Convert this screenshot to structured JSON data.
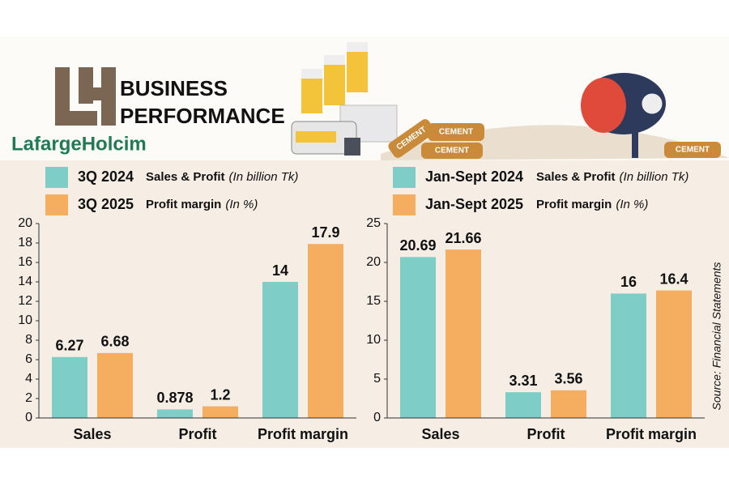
{
  "header": {
    "title_lines": [
      "BUSINESS",
      "PERFORMANCE"
    ],
    "brand": "LafargeHolcim",
    "bag_labels": [
      "CEMENT",
      "CEMENT",
      "CEMENT",
      "CEMENT"
    ]
  },
  "source": "Source: Financial Statements",
  "chart_data": [
    {
      "type": "bar",
      "categories": [
        "Sales",
        "Profit",
        "Profit margin"
      ],
      "series": [
        {
          "name": "3Q 2024",
          "color": "#7ecdc6",
          "values": [
            6.27,
            0.878,
            14
          ]
        },
        {
          "name": "3Q 2025",
          "color": "#f5ad5f",
          "values": [
            6.68,
            1.2,
            17.9
          ]
        }
      ],
      "legend_notes": [
        {
          "text": "Sales & Profit",
          "unit": "(In billion Tk)"
        },
        {
          "text": "Profit margin",
          "unit": "(In %)"
        }
      ],
      "ylim": [
        0,
        20
      ],
      "yticks": [
        0,
        2,
        4,
        6,
        8,
        10,
        12,
        14,
        16,
        18,
        20
      ],
      "grid": false
    },
    {
      "type": "bar",
      "categories": [
        "Sales",
        "Profit",
        "Profit margin"
      ],
      "series": [
        {
          "name": "Jan-Sept 2024",
          "color": "#7ecdc6",
          "values": [
            20.69,
            3.31,
            16
          ]
        },
        {
          "name": "Jan-Sept 2025",
          "color": "#f5ad5f",
          "values": [
            21.66,
            3.56,
            16.4
          ]
        }
      ],
      "legend_notes": [
        {
          "text": "Sales & Profit",
          "unit": "(In billion Tk)"
        },
        {
          "text": "Profit margin",
          "unit": "(In %)"
        }
      ],
      "ylim": [
        0,
        25
      ],
      "yticks": [
        0,
        5,
        10,
        15,
        20,
        25
      ],
      "grid": false
    }
  ]
}
